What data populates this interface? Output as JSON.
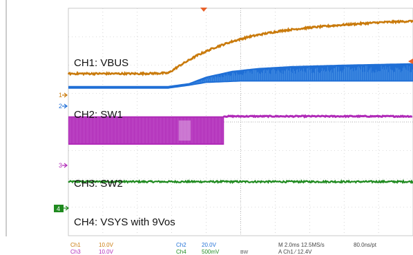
{
  "chart_data": {
    "type": "line",
    "title": "",
    "grid": true,
    "x_unit": "ms",
    "xlim": [
      -10,
      10
    ],
    "y_unit": "div",
    "ylim": [
      -4,
      4
    ],
    "series": [
      {
        "name": "CH1: VBUS",
        "color": "#b86a0a",
        "points": [
          [
            -10,
            1.7
          ],
          [
            -8,
            1.7
          ],
          [
            -6,
            1.7
          ],
          [
            -4.2,
            1.72
          ],
          [
            -3.5,
            2.0
          ],
          [
            -2.5,
            2.35
          ],
          [
            -1.5,
            2.62
          ],
          [
            -0.5,
            2.83
          ],
          [
            0.5,
            3.0
          ],
          [
            1.5,
            3.12
          ],
          [
            2.5,
            3.22
          ],
          [
            4,
            3.32
          ],
          [
            6,
            3.42
          ],
          [
            8,
            3.5
          ],
          [
            10,
            3.55
          ]
        ],
        "ch_marker": "1"
      },
      {
        "name": "CH2: SW1",
        "color": "#1a6fcf",
        "base_points": [
          [
            -10,
            1.22
          ],
          [
            -6,
            1.22
          ],
          [
            -4.2,
            1.22
          ],
          [
            -3,
            1.32
          ],
          [
            -2,
            1.42
          ],
          [
            0,
            1.47
          ],
          [
            10,
            1.47
          ]
        ],
        "top_points": [
          [
            -3,
            1.32
          ],
          [
            -2,
            1.55
          ],
          [
            -0.5,
            1.75
          ],
          [
            1,
            1.85
          ],
          [
            3,
            1.92
          ],
          [
            6,
            1.97
          ],
          [
            10,
            2.02
          ]
        ],
        "ch_marker": "2"
      },
      {
        "name": "CH3: SW2",
        "color": "#b02ab8",
        "top_level": 0.2,
        "bottom_level": -0.8,
        "switch_off_time": -1.0,
        "ch_marker": "3"
      },
      {
        "name": "CH4: VSYS with 9Vos",
        "color": "#1f8a1f",
        "level": -2.1,
        "ch_marker": "4"
      }
    ]
  },
  "labels": {
    "ch1": "CH1: VBUS",
    "ch2": "CH2: SW1",
    "ch3": "CH3: SW2",
    "ch4": "CH4: VSYS with 9Vos"
  },
  "markers": {
    "m1": "1",
    "m2": "2",
    "m3": "3",
    "m4": "4"
  },
  "readout": {
    "ch1_name": "Ch1",
    "ch1_scale": "10.0V",
    "ch3_name": "Ch3",
    "ch3_scale": "10.0V",
    "ch2_name": "Ch2",
    "ch2_scale": "20.0V",
    "ch4_name": "Ch4",
    "ch4_scale": "500mV",
    "bw": "BW",
    "timebase": "M 2.0ms 12.5MS/s",
    "sample": "80.0ns/pt",
    "trigger": "A  Ch1  ⁄  12.4V"
  },
  "colors": {
    "ch1": "#c97a0b",
    "ch2": "#1f6fd6",
    "ch3": "#b02ab8",
    "ch4": "#1f8a1f",
    "grid": "#b8b8b8"
  }
}
